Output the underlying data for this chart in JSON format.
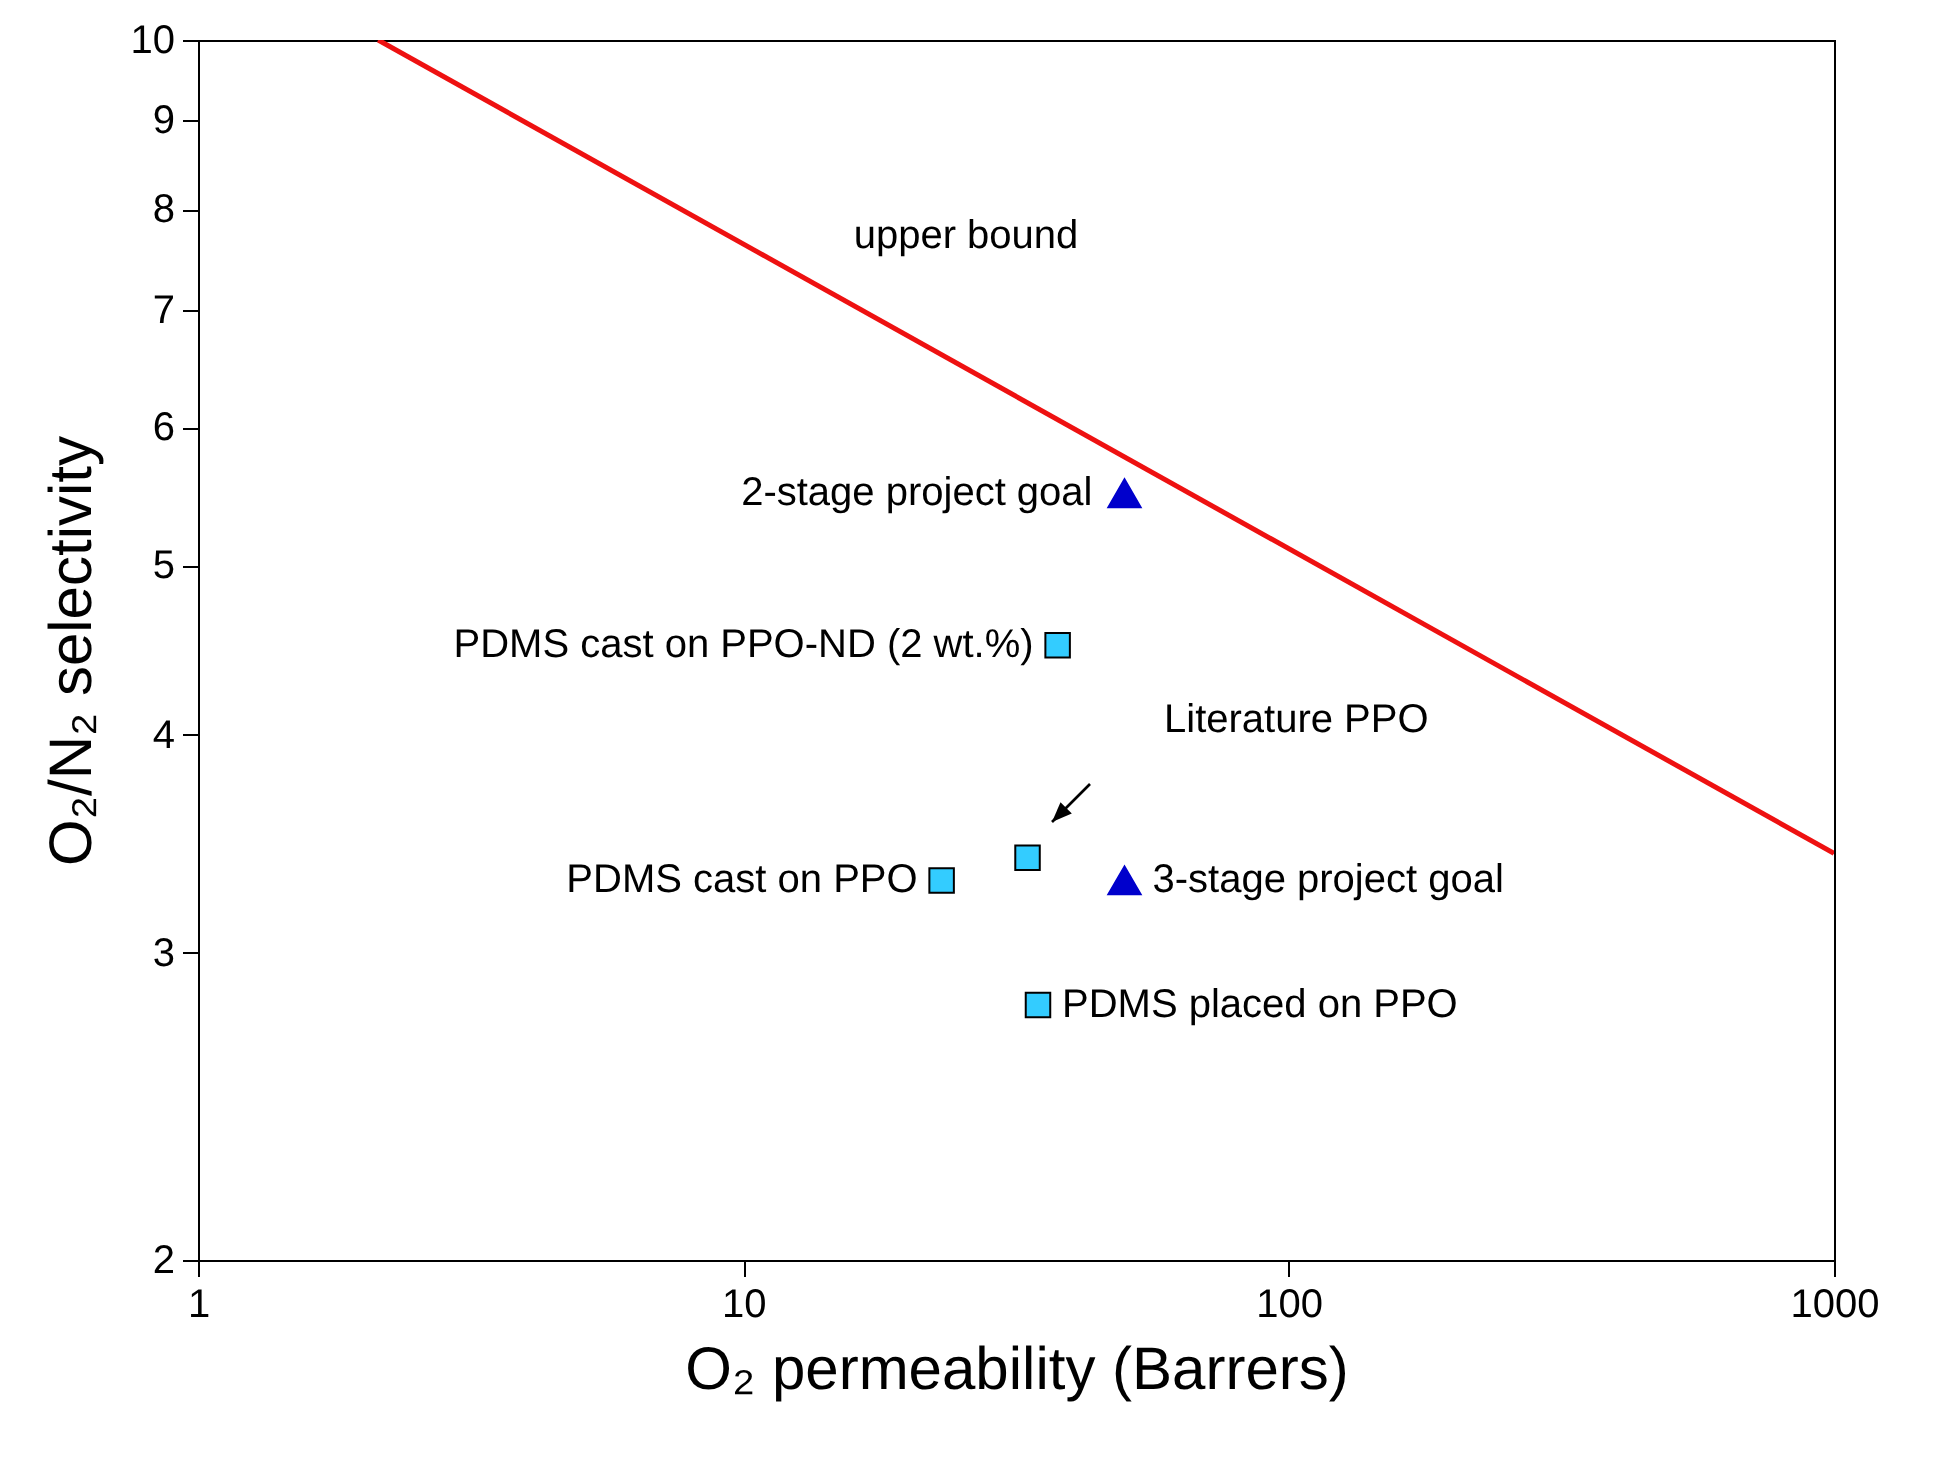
{
  "chart_data": {
    "type": "scatter",
    "xlabel": "O₂ permeability (Barrers)",
    "ylabel": "O₂/N₂ selectivity",
    "log": "xy",
    "grid": false,
    "xlim": [
      1,
      1000
    ],
    "xticks": [
      1,
      10,
      100,
      1000
    ],
    "ylim": [
      2,
      10
    ],
    "yticks": [
      2,
      3,
      4,
      5,
      6,
      7,
      8,
      9,
      10
    ],
    "series": [
      {
        "type": "line",
        "color": "#ee1111",
        "x": [
          2.14,
          1000
        ],
        "values": [
          10,
          3.42
        ],
        "line_style": "solid"
      },
      {
        "color": "#33ccff",
        "marker": "square",
        "x": [
          37.7,
          33.2,
          23.1,
          34.7
        ],
        "values": [
          4.5,
          3.4,
          3.3,
          2.8
        ]
      },
      {
        "color": "#0000cc",
        "marker": "triangle",
        "x": [
          50,
          50
        ],
        "values": [
          5.5,
          3.3
        ]
      }
    ],
    "annotations": [
      "upper bound",
      {
        "text": "2-stage project goal",
        "x": 50,
        "y": 5.5
      },
      {
        "text": "PDMS cast on PPO-ND (2 wt.%)",
        "x": 37.7,
        "y": 4.5
      },
      "Literature PPO",
      {
        "text": "PDMS cast on PPO",
        "x": 23.1,
        "y": 3.3
      },
      {
        "text": "3-stage project goal",
        "x": 50,
        "y": 3.3
      },
      {
        "text": "PDMS placed on PPO",
        "x": 34.7,
        "y": 2.8
      }
    ]
  }
}
